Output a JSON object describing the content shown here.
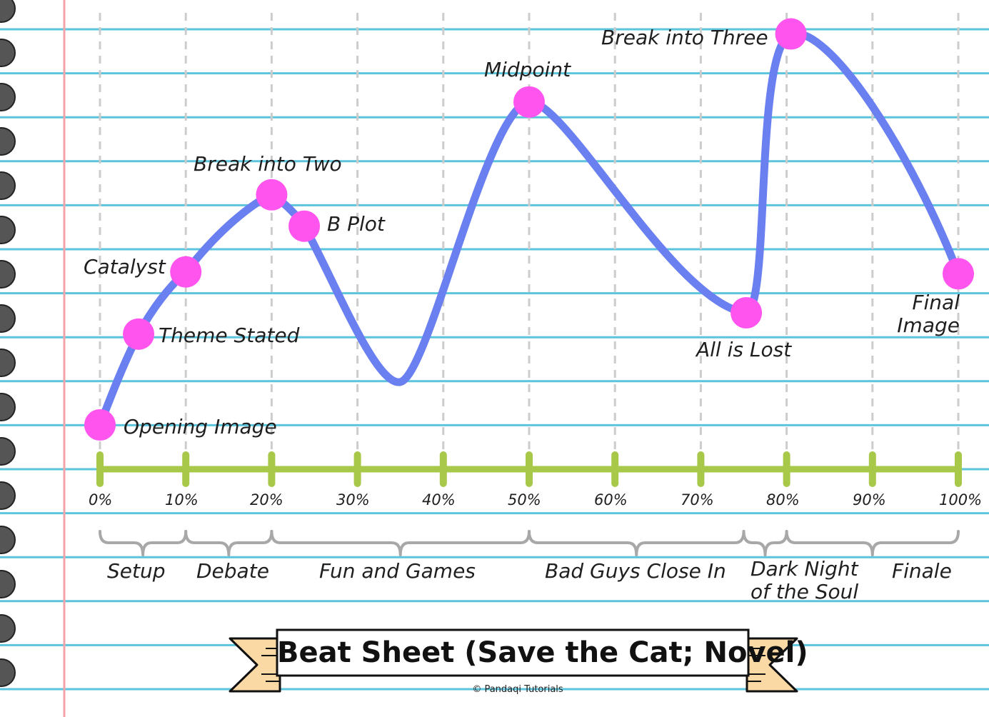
{
  "title": "Beat Sheet (Save the Cat; Novel)",
  "credit": "© Pandaqi Tutorials",
  "colors": {
    "curve": "#6a7ff0",
    "beat": "#ff55ee",
    "axis": "#a8c84a",
    "paper_line": "#5cc4dc",
    "margin_line": "#f2a3a8",
    "banner": "#fbd9a4"
  },
  "axis_ticks": [
    "0%",
    "10%",
    "20%",
    "30%",
    "40%",
    "50%",
    "60%",
    "70%",
    "80%",
    "90%",
    "100%"
  ],
  "beats": [
    {
      "label": "Opening Image",
      "x": 0
    },
    {
      "label": "Theme Stated",
      "x": 4.5
    },
    {
      "label": "Catalyst",
      "x": 10
    },
    {
      "label": "Break into Two",
      "x": 20
    },
    {
      "label": "B Plot",
      "x": 23.8
    },
    {
      "label": "Midpoint",
      "x": 50
    },
    {
      "label": "All is Lost",
      "x": 75.3
    },
    {
      "label": "Break into Three",
      "x": 80.5
    },
    {
      "label": "Final\nImage",
      "x": 100
    }
  ],
  "acts": [
    {
      "label": "Setup",
      "from": 0,
      "to": 10
    },
    {
      "label": "Debate",
      "from": 10,
      "to": 20
    },
    {
      "label": "Fun and Games",
      "from": 20,
      "to": 50
    },
    {
      "label": "Bad Guys Close In",
      "from": 50,
      "to": 75
    },
    {
      "label": "Dark Night\nof the Soul",
      "from": 75,
      "to": 80
    },
    {
      "label": "Finale",
      "from": 80,
      "to": 100
    }
  ]
}
